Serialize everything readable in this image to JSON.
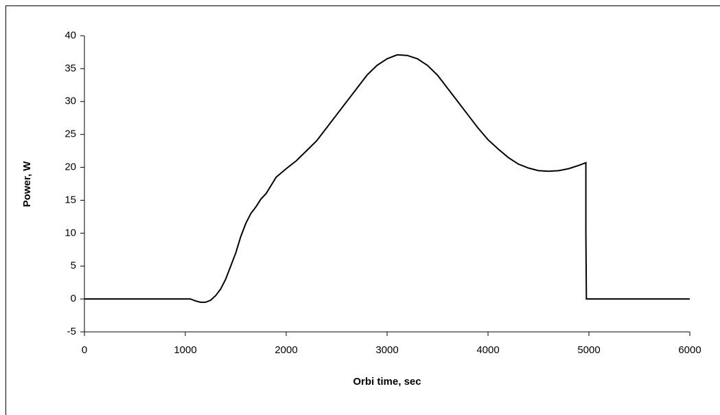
{
  "chart_data": {
    "type": "line",
    "x_label": "Orbi time, sec",
    "y_label": "Power, W",
    "x": [
      0,
      1000,
      1050,
      1100,
      1150,
      1200,
      1250,
      1300,
      1350,
      1400,
      1450,
      1500,
      1550,
      1600,
      1650,
      1700,
      1750,
      1800,
      1900,
      2000,
      2100,
      2200,
      2300,
      2400,
      2500,
      2600,
      2700,
      2800,
      2900,
      3000,
      3100,
      3200,
      3300,
      3400,
      3500,
      3600,
      3700,
      3800,
      3900,
      4000,
      4100,
      4200,
      4300,
      4400,
      4500,
      4600,
      4700,
      4800,
      4900,
      4970,
      4970,
      4975,
      5000,
      6000
    ],
    "values": [
      0,
      0,
      0,
      -0.3,
      -0.5,
      -0.5,
      -0.2,
      0.5,
      1.5,
      3,
      5,
      7,
      9.5,
      11.5,
      13,
      14,
      15.2,
      16,
      18.5,
      19.8,
      21,
      22.5,
      24,
      26,
      28,
      30,
      32,
      34,
      35.5,
      36.5,
      37.1,
      37,
      36.5,
      35.5,
      34,
      32,
      30,
      28,
      26,
      24.2,
      22.8,
      21.5,
      20.5,
      19.9,
      19.5,
      19.4,
      19.5,
      19.8,
      20.3,
      20.7,
      10,
      0,
      0,
      0
    ],
    "color": "#000000",
    "xlim": [
      0,
      6000
    ],
    "xticks": [
      0,
      1000,
      2000,
      3000,
      4000,
      5000,
      6000
    ],
    "ylim": [
      -5,
      40
    ],
    "yticks": [
      -5,
      0,
      5,
      10,
      15,
      20,
      25,
      30,
      35,
      40
    ],
    "grid": false
  }
}
